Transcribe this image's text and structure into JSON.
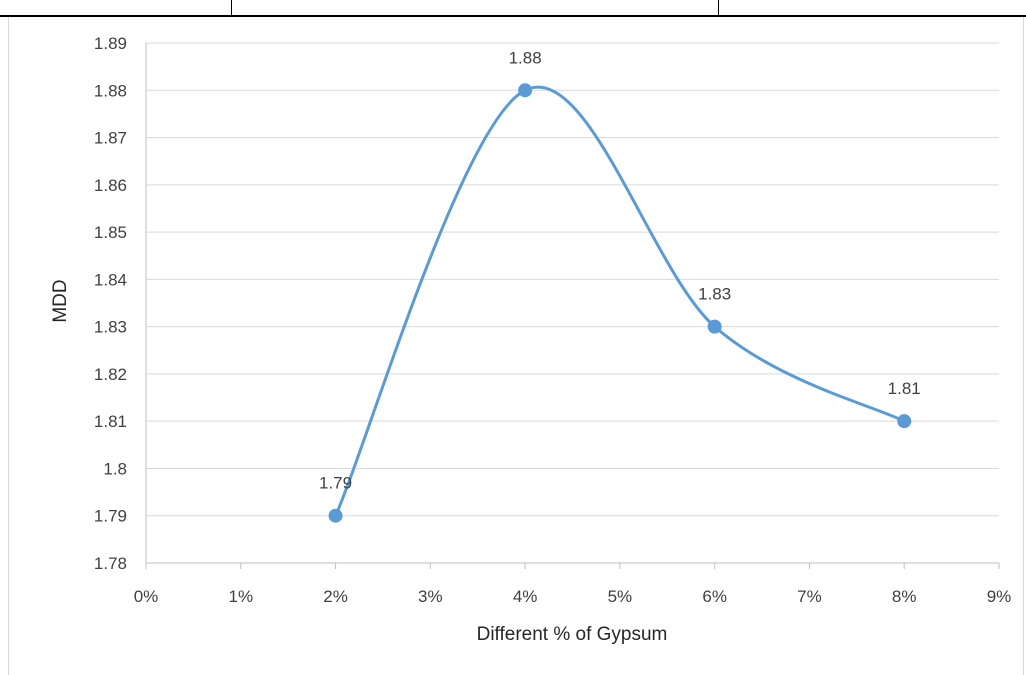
{
  "chart_data": {
    "type": "line",
    "smooth": true,
    "title": "",
    "xlabel": "Different % of Gypsum",
    "ylabel": "MDD",
    "x_tick_labels": [
      "0%",
      "1%",
      "2%",
      "3%",
      "4%",
      "5%",
      "6%",
      "7%",
      "8%",
      "9%"
    ],
    "y_tick_labels": [
      "1.78",
      "1.79",
      "1.8",
      "1.81",
      "1.82",
      "1.83",
      "1.84",
      "1.85",
      "1.86",
      "1.87",
      "1.88",
      "1.89"
    ],
    "xlim": [
      0,
      9
    ],
    "ylim": [
      1.78,
      1.89
    ],
    "grid": "horizontal",
    "legend": "none",
    "series": [
      {
        "x": [
          2,
          4,
          6,
          8
        ],
        "values": [
          1.79,
          1.88,
          1.83,
          1.81
        ],
        "data_labels": [
          "1.79",
          "1.88",
          "1.83",
          "1.81"
        ],
        "color": "#5b9bd5"
      }
    ],
    "colors": {
      "gridline": "#d9d9d9",
      "axis": "#bfbfbf",
      "text": "#404040"
    }
  }
}
